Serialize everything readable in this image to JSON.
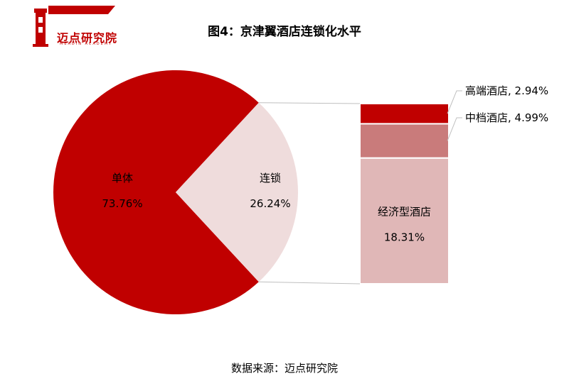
{
  "logo": {
    "text": "迈点研究院",
    "subtext": "MEADIN ACADEMY"
  },
  "title": "图4：京津翼酒店连锁化水平",
  "source": "数据来源：迈点研究院",
  "colors": {
    "accent": "#c00000",
    "chain_slice": "#efdcdc",
    "highend": "#c00000",
    "midrange": "#c97b7b",
    "economy": "#e0b7b7",
    "connector": "#bfbfbf"
  },
  "chart_data": [
    {
      "type": "pie",
      "labels": [
        "单体",
        "连锁"
      ],
      "values": [
        73.76,
        26.24
      ],
      "value_labels": [
        "73.76%",
        "26.24%"
      ]
    },
    {
      "type": "bar",
      "stacked": true,
      "categories": [
        "高端酒店",
        "中档酒店",
        "经济型酒店"
      ],
      "values": [
        2.94,
        4.99,
        18.31
      ],
      "value_labels": [
        "2.94%",
        "4.99%",
        "18.31%"
      ],
      "callout_labels": [
        "高端酒店, 2.94%",
        "中档酒店, 4.99%"
      ]
    }
  ]
}
